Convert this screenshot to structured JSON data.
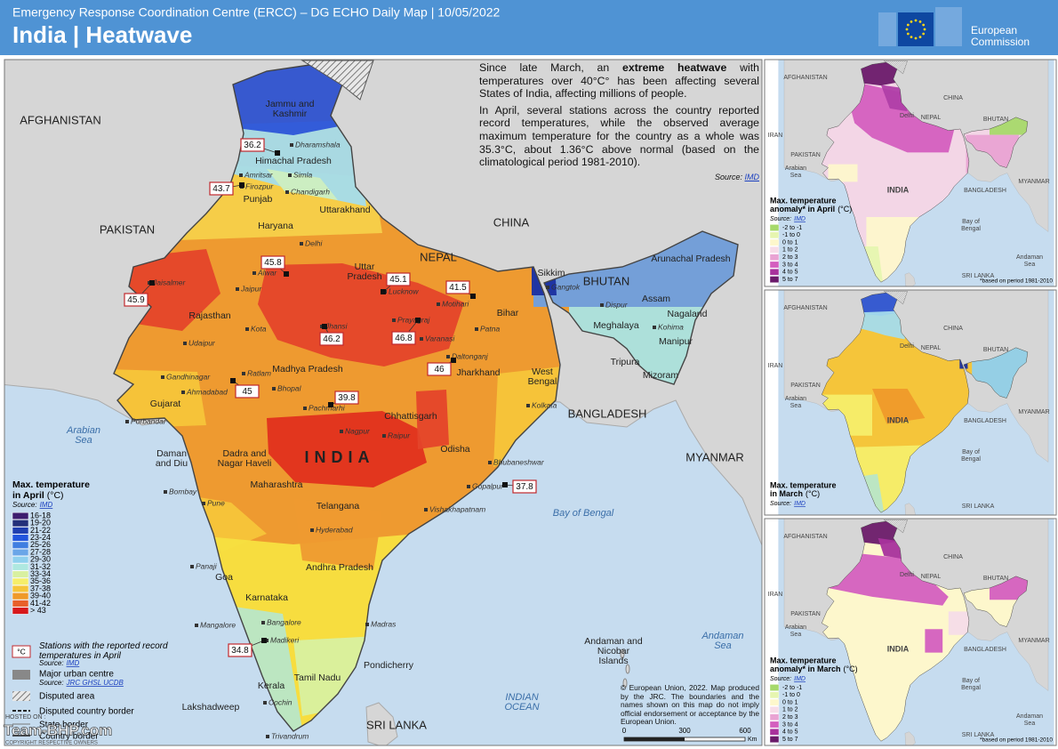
{
  "header": {
    "subtitle": "Emergency Response Coordination Centre (ERCC) – DG ECHO Daily Map | 10/05/2022",
    "title": "India | Heatwave",
    "logo": [
      "European",
      "Commission"
    ]
  },
  "description": {
    "p1": [
      "Since late March, an ",
      "extreme heatwave",
      " with temperatures over 40°C° has been affecting several States of India, affecting millions of people."
    ],
    "p2": "In April, several stations across the country reported record temperatures, while the observed average maximum temperature for the country as a whole was 35.3°C, about 1.36°C above normal (based on the climatological period 1981-2010).",
    "source_label": "Source:",
    "source": "IMD"
  },
  "map": {
    "countries": [
      "AFGHANISTAN",
      "PAKISTAN",
      "CHINA",
      "NEPAL",
      "BHUTAN",
      "BANGLADESH",
      "MYANMAR",
      "SRI LANKA"
    ],
    "india_label": "INDIA",
    "states": [
      [
        "Jammu and",
        "Kashmir"
      ],
      "Himachal Pradesh",
      "Punjab",
      "Uttarakhand",
      "Haryana",
      "Rajasthan",
      [
        "Uttar",
        "Pradesh"
      ],
      "Bihar",
      "Sikkim",
      "Assam",
      "Arunachal Pradesh",
      "Meghalaya",
      "Nagaland",
      "Manipur",
      "Tripura",
      "Mizoram",
      [
        "West",
        "Bengal"
      ],
      "Jharkhand",
      "Madhya Pradesh",
      "Gujarat",
      "Chhattisgarh",
      "Odisha",
      [
        "Dadra and",
        "Nagar Haveli"
      ],
      [
        "Daman",
        "and Diu"
      ],
      "Maharashtra",
      "Telangana",
      "Andhra Pradesh",
      "Karnataka",
      "Goa",
      "Kerala",
      "Tamil Nadu",
      "Lakshadweep",
      [
        "Andaman and",
        "Nicobar",
        "Islands"
      ],
      "Pondicherry"
    ],
    "cities": [
      "Dharamshala",
      "Amritsar",
      "Firozpur",
      "Simla",
      "Chandigarh",
      "Delhi",
      "Alwar",
      "Jaipur",
      "Jaisalmer",
      "Lucknow",
      "Motihari",
      "Kota",
      "Jhansi",
      "Prayagraj",
      "Varanasi",
      "Patna",
      "Daltonganj",
      "Kolkata",
      "Udaipur",
      "Gandhinagar",
      "Ahmadabad",
      "Ratlam",
      "Bhopal",
      "Pachmarhi",
      "Raipur",
      "Nagpur",
      "Porbandar",
      "Bombay",
      "Pune",
      "Panaji",
      "Hyderabad",
      "Vishakhapatnam",
      "Bhubaneshwar",
      "Gopalpur",
      "Madras",
      "Mangalore",
      "Bangalore",
      "Madikeri",
      "Cochin",
      "Trivandrum",
      "Gangtok",
      "Dispur",
      "Kohima"
    ],
    "seas": [
      [
        "Arabian",
        "Sea"
      ],
      "Bay of Bengal",
      [
        "INDIAN",
        "OCEAN"
      ],
      [
        "Andaman",
        "Sea"
      ]
    ],
    "stations": [
      36.2,
      43.7,
      45.8,
      45.9,
      45.1,
      41.5,
      46.2,
      46.8,
      46,
      45,
      39.8,
      37.8,
      34.8
    ]
  },
  "legend": {
    "title": "Max. temperature",
    "period": "in April",
    "unit": "(°C)",
    "source_label": "Source:",
    "source": "IMD",
    "items": [
      {
        "label": "16-18",
        "color": "#3d1c6e"
      },
      {
        "label": "19-20",
        "color": "#23307a"
      },
      {
        "label": "21-22",
        "color": "#1f3fb0"
      },
      {
        "label": "23-24",
        "color": "#2255dd"
      },
      {
        "label": "25-26",
        "color": "#3f7ee0"
      },
      {
        "label": "27-28",
        "color": "#6aa6e8"
      },
      {
        "label": "29-30",
        "color": "#8fd0ee"
      },
      {
        "label": "31-32",
        "color": "#aee8e0"
      },
      {
        "label": "33-34",
        "color": "#d8f0a0"
      },
      {
        "label": "35-36",
        "color": "#f5ee6a"
      },
      {
        "label": "37-38",
        "color": "#f5c53a"
      },
      {
        "label": "39-40",
        "color": "#ef9a2a"
      },
      {
        "label": "41-42",
        "color": "#e8602a"
      },
      {
        "label": "> 43",
        "color": "#d7191c"
      }
    ]
  },
  "legend_extra": {
    "station_box": "°C",
    "station_text": [
      "Stations with the reported record",
      "temperatures in April"
    ],
    "station_source_label": "Source:",
    "station_source": "IMD",
    "urban": "Major urban centre",
    "urban_source_label": "Source:",
    "urban_source": "JRC GHSL UCDB",
    "disputed_area": "Disputed area",
    "disputed_border": "Disputed country border",
    "state_border": "State border",
    "country_border": "Country border"
  },
  "scale_bar": {
    "ticks": [
      0,
      300,
      600
    ],
    "unit": "Km"
  },
  "copyright": "© European Union, 2022. Map produced by the JRC. The boundaries and the names shown on this map do not imply official endorsement or acceptance by the European Union.",
  "watermark": {
    "hosted": "HOSTED ON :",
    "site": "Team-BHP.com",
    "rights": "COPYRIGHT RESPECTIVE OWNERS"
  },
  "insets": [
    {
      "title": "Max. temperature",
      "subtitle": "anomaly* in April",
      "unit": "(°C)",
      "source_label": "Source:",
      "source": "IMD",
      "items": [
        {
          "label": "-2 to -1",
          "color": "#a6d96a"
        },
        {
          "label": "-1 to 0",
          "color": "#e6f5b0"
        },
        {
          "label": "0 to 1",
          "color": "#fdf7cc"
        },
        {
          "label": "1 to 2",
          "color": "#f6dce8"
        },
        {
          "label": "2 to 3",
          "color": "#e9a3d3"
        },
        {
          "label": "3 to 4",
          "color": "#d45fbf"
        },
        {
          "label": "4 to 5",
          "color": "#a8329c"
        },
        {
          "label": "5 to 7",
          "color": "#6a1a6a"
        }
      ],
      "labels": [
        "AFGHANISTAN",
        "CHINA",
        "NEPAL",
        "BHUTAN",
        "IRAN",
        "PAKISTAN",
        [
          "Arabian",
          "Sea"
        ],
        "INDIA",
        "BANGLADESH",
        "MYANMAR",
        [
          "Bay of",
          "Bengal"
        ],
        [
          "Andaman",
          "Sea"
        ],
        "SRI LANKA",
        "Delhi"
      ],
      "footnote": "*based on period 1981-2010"
    },
    {
      "title": "Max. temperature",
      "subtitle": "in March",
      "unit": "(°C)",
      "source_label": "Source:",
      "source": "IMD",
      "labels": [
        "AFGHANISTAN",
        "CHINA",
        "NEPAL",
        "BHUTAN",
        "IRAN",
        "PAKISTAN",
        [
          "Arabian",
          "Sea"
        ],
        "INDIA",
        "BANGLADESH",
        "MYANMAR",
        [
          "Bay of",
          "Bengal"
        ],
        "SRI LANKA",
        "Delhi"
      ]
    },
    {
      "title": "Max. temperature",
      "subtitle": "anomaly* in March",
      "unit": "(°C)",
      "source_label": "Source:",
      "source": "IMD",
      "items": [
        {
          "label": "-2 to -1",
          "color": "#a6d96a"
        },
        {
          "label": "-1 to 0",
          "color": "#e6f5b0"
        },
        {
          "label": "0 to 1",
          "color": "#fdf7cc"
        },
        {
          "label": "1 to 2",
          "color": "#f6dce8"
        },
        {
          "label": "2 to 3",
          "color": "#e9a3d3"
        },
        {
          "label": "3 to 4",
          "color": "#d45fbf"
        },
        {
          "label": "4 to 5",
          "color": "#a8329c"
        },
        {
          "label": "5 to 7",
          "color": "#6a1a6a"
        }
      ],
      "labels": [
        "AFGHANISTAN",
        "CHINA",
        "NEPAL",
        "BHUTAN",
        "IRAN",
        "PAKISTAN",
        [
          "Arabian",
          "Sea"
        ],
        "INDIA",
        "BANGLADESH",
        "MYANMAR",
        [
          "Bay of",
          "Bengal"
        ],
        [
          "Andaman",
          "Sea"
        ],
        "SRI LANKA",
        "Delhi"
      ],
      "footnote": "*based on period 1981-2010"
    }
  ]
}
